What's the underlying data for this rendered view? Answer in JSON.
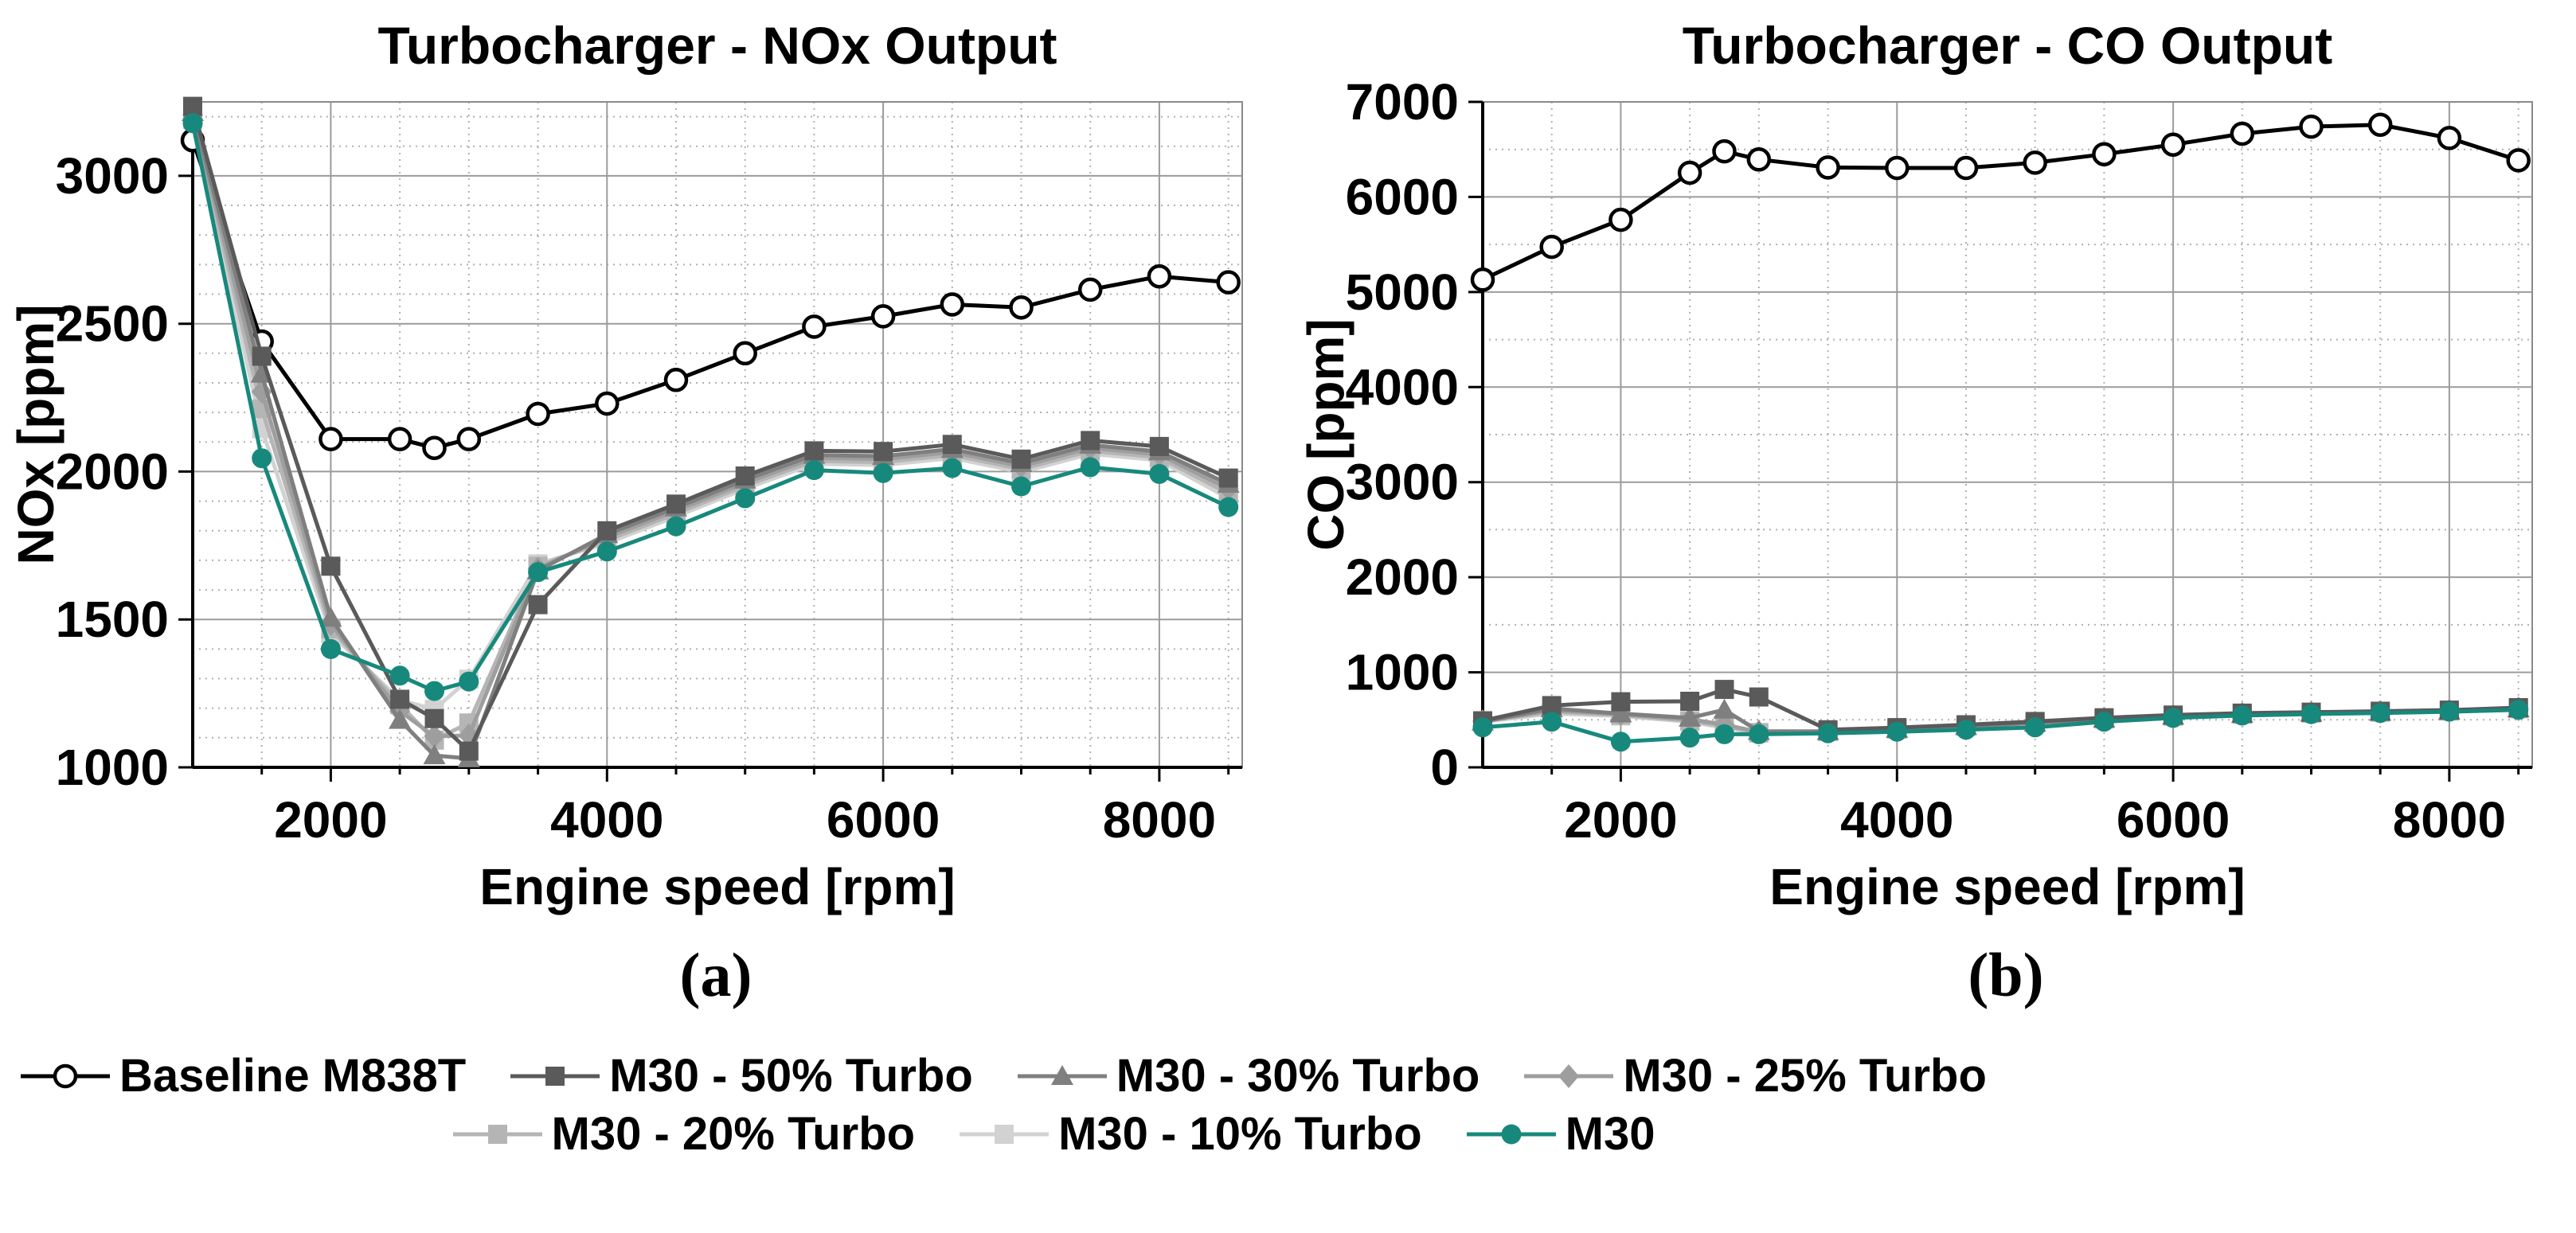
{
  "figure": {
    "panels": [
      {
        "label": "(a)"
      },
      {
        "label": "(b)"
      }
    ]
  },
  "legend": {
    "rows": [
      [
        {
          "name": "baseline-m838t",
          "label": "Baseline M838T",
          "marker": "circle-open",
          "color": "#000000"
        },
        {
          "name": "m30-50-turbo",
          "label": "M30 - 50% Turbo",
          "marker": "square",
          "color": "#5a5a5a"
        },
        {
          "name": "m30-30-turbo",
          "label": "M30 - 30% Turbo",
          "marker": "triangle",
          "color": "#7f7f7f"
        },
        {
          "name": "m30-25-turbo",
          "label": "M30 - 25% Turbo",
          "marker": "diamond",
          "color": "#9e9e9e"
        }
      ],
      [
        {
          "name": "m30-20-turbo",
          "label": "M30 - 20% Turbo",
          "marker": "square",
          "color": "#b5b5b5"
        },
        {
          "name": "m30-10-turbo",
          "label": "M30 - 10% Turbo",
          "marker": "square",
          "color": "#d2d2d2"
        },
        {
          "name": "m30",
          "label": "M30",
          "marker": "circle",
          "color": "#17897c"
        }
      ]
    ]
  },
  "chart_data": [
    {
      "type": "line",
      "title": "Turbocharger - NOx Output",
      "xlabel": "Engine speed [rpm]",
      "ylabel": "NOx [ppm]",
      "xlim": [
        1000,
        8600
      ],
      "ylim": [
        1000,
        3250
      ],
      "xticks": [
        2000,
        4000,
        6000,
        8000
      ],
      "yticks": [
        1000,
        1500,
        2000,
        2500,
        3000
      ],
      "x_minor_step": 500,
      "y_minor_step": 100,
      "grid": true,
      "legend_position": "bottom",
      "x": [
        1000,
        1500,
        2000,
        2500,
        2750,
        3000,
        3500,
        4000,
        4500,
        5000,
        5500,
        6000,
        6500,
        7000,
        7500,
        8000,
        8500
      ],
      "series": [
        {
          "name": "baseline-m838t",
          "label": "Baseline M838T",
          "color": "#000000",
          "marker": "circle-open",
          "zorder": 0,
          "values": [
            3120,
            2440,
            2110,
            2110,
            2080,
            2110,
            2195,
            2230,
            2310,
            2400,
            2490,
            2525,
            2565,
            2555,
            2615,
            2660,
            2640
          ]
        },
        {
          "name": "m30-50-turbo",
          "label": "M30 - 50% Turbo",
          "color": "#5a5a5a",
          "marker": "square",
          "zorder": 5,
          "values": [
            3235,
            2390,
            1680,
            1230,
            1165,
            1055,
            1550,
            1800,
            1890,
            1985,
            2070,
            2068,
            2092,
            2042,
            2105,
            2085,
            1978
          ]
        },
        {
          "name": "m30-30-turbo",
          "label": "M30 - 30% Turbo",
          "color": "#7f7f7f",
          "marker": "triangle",
          "zorder": 4,
          "values": [
            3215,
            2330,
            1505,
            1160,
            1040,
            1030,
            1665,
            1788,
            1878,
            1972,
            2056,
            2052,
            2076,
            2028,
            2090,
            2068,
            1958
          ]
        },
        {
          "name": "m30-25-turbo",
          "label": "M30 - 25% Turbo",
          "color": "#9e9e9e",
          "marker": "diamond",
          "zorder": 3,
          "values": [
            3205,
            2270,
            1485,
            1190,
            1105,
            1108,
            1672,
            1778,
            1868,
            1962,
            2046,
            2042,
            2066,
            2018,
            2080,
            2058,
            1942
          ]
        },
        {
          "name": "m30-20-turbo",
          "label": "M30 - 20% Turbo",
          "color": "#b5b5b5",
          "marker": "square",
          "zorder": 2,
          "values": [
            3198,
            2212,
            1468,
            1212,
            1092,
            1150,
            1680,
            1768,
            1858,
            1952,
            2036,
            2032,
            2056,
            2008,
            2070,
            2048,
            1926
          ]
        },
        {
          "name": "m30-10-turbo",
          "label": "M30 - 10% Turbo",
          "color": "#d2d2d2",
          "marker": "square",
          "zorder": 1,
          "values": [
            3190,
            2145,
            1452,
            1228,
            1196,
            1298,
            1688,
            1758,
            1848,
            1942,
            2026,
            2022,
            2046,
            1998,
            2060,
            2038,
            1910
          ]
        },
        {
          "name": "m30",
          "label": "M30",
          "color": "#17897c",
          "marker": "circle",
          "zorder": 6,
          "values": [
            3178,
            2045,
            1400,
            1310,
            1258,
            1290,
            1660,
            1730,
            1815,
            1910,
            2005,
            1995,
            2012,
            1950,
            2015,
            1992,
            1880
          ]
        }
      ]
    },
    {
      "type": "line",
      "title": "Turbocharger - CO Output",
      "xlabel": "Engine speed [rpm]",
      "ylabel": "CO [ppm]",
      "xlim": [
        1000,
        8600
      ],
      "ylim": [
        0,
        7000
      ],
      "xticks": [
        2000,
        4000,
        6000,
        8000
      ],
      "yticks": [
        0,
        1000,
        2000,
        3000,
        4000,
        5000,
        6000,
        7000
      ],
      "x_minor_step": 500,
      "y_minor_step": 500,
      "grid": true,
      "legend_position": "bottom",
      "x": [
        1000,
        1500,
        2000,
        2500,
        2750,
        3000,
        3500,
        4000,
        4500,
        5000,
        5500,
        6000,
        6500,
        7000,
        7500,
        8000,
        8500
      ],
      "series": [
        {
          "name": "baseline-m838t",
          "label": "Baseline M838T",
          "color": "#000000",
          "marker": "circle-open",
          "zorder": 0,
          "values": [
            5130,
            5475,
            5760,
            6255,
            6480,
            6395,
            6310,
            6305,
            6305,
            6360,
            6450,
            6550,
            6665,
            6740,
            6760,
            6620,
            6385
          ]
        },
        {
          "name": "m30-50-turbo",
          "label": "M30 - 50% Turbo",
          "color": "#5a5a5a",
          "marker": "square",
          "zorder": 5,
          "values": [
            490,
            650,
            690,
            695,
            820,
            740,
            395,
            418,
            448,
            482,
            522,
            550,
            570,
            580,
            590,
            602,
            628
          ]
        },
        {
          "name": "m30-30-turbo",
          "label": "M30 - 30% Turbo",
          "color": "#7f7f7f",
          "marker": "triangle",
          "zorder": 4,
          "values": [
            480,
            620,
            565,
            520,
            605,
            380,
            378,
            402,
            432,
            468,
            510,
            540,
            560,
            572,
            582,
            594,
            618
          ]
        },
        {
          "name": "m30-25-turbo",
          "label": "M30 - 25% Turbo",
          "color": "#9e9e9e",
          "marker": "diamond",
          "zorder": 3,
          "values": [
            485,
            600,
            560,
            505,
            450,
            372,
            380,
            405,
            435,
            470,
            512,
            542,
            562,
            574,
            584,
            596,
            620
          ]
        },
        {
          "name": "m30-20-turbo",
          "label": "M30 - 20% Turbo",
          "color": "#b5b5b5",
          "marker": "square",
          "zorder": 2,
          "values": [
            482,
            585,
            550,
            490,
            432,
            366,
            378,
            402,
            432,
            468,
            510,
            540,
            560,
            572,
            582,
            594,
            618
          ]
        },
        {
          "name": "m30-10-turbo",
          "label": "M30 - 10% Turbo",
          "color": "#d2d2d2",
          "marker": "square",
          "zorder": 1,
          "values": [
            478,
            565,
            540,
            478,
            416,
            360,
            376,
            400,
            430,
            466,
            508,
            538,
            558,
            570,
            580,
            592,
            616
          ]
        },
        {
          "name": "m30",
          "label": "M30",
          "color": "#17897c",
          "marker": "circle",
          "zorder": 6,
          "values": [
            420,
            480,
            270,
            312,
            348,
            348,
            358,
            375,
            395,
            420,
            480,
            520,
            545,
            560,
            572,
            585,
            605
          ]
        }
      ]
    }
  ]
}
